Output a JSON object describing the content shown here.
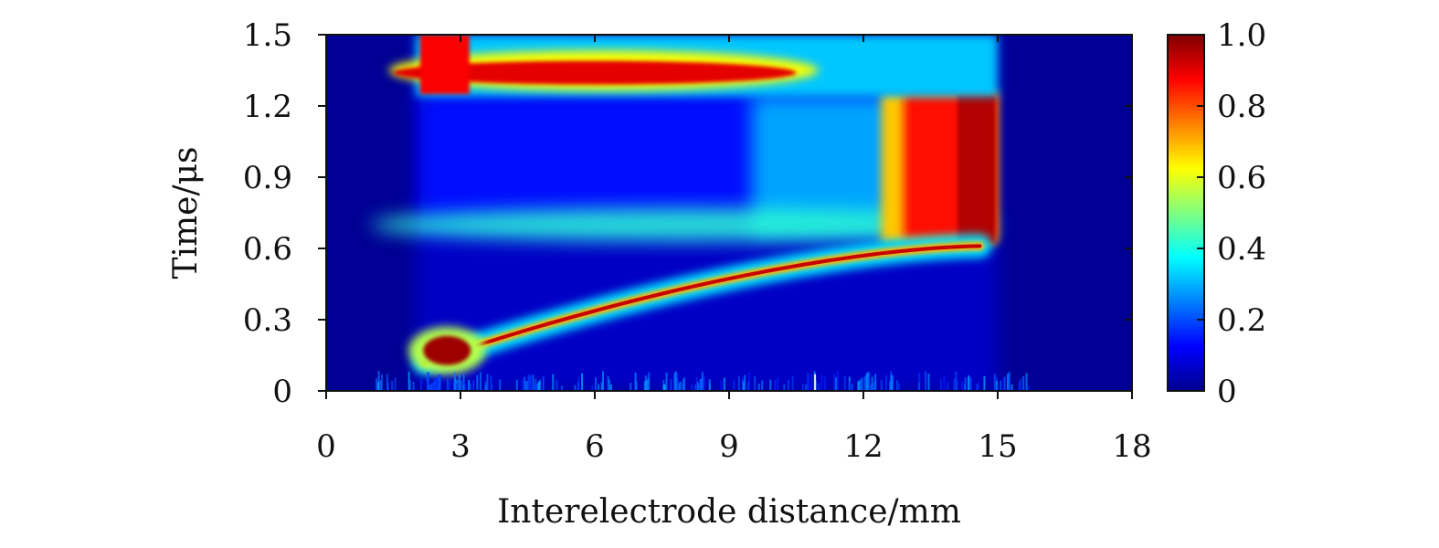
{
  "chart_data": {
    "type": "heatmap",
    "title": "",
    "xlabel": "Interelectrode distance/mm",
    "ylabel": "Time/μs",
    "xlim": [
      0,
      18
    ],
    "ylim": [
      0,
      1.5
    ],
    "x_ticks": [
      "0",
      "3",
      "6",
      "9",
      "12",
      "15",
      "18"
    ],
    "y_ticks": [
      "0",
      "0.3",
      "0.6",
      "0.9",
      "1.2",
      "1.5"
    ],
    "colorbar": {
      "range": [
        0,
        1.0
      ],
      "ticks": [
        "0",
        "0.2",
        "0.4",
        "0.6",
        "0.8",
        "1.0"
      ],
      "colormap": "jet"
    },
    "features": [
      {
        "name": "Primary ionization front",
        "x_start_mm": 2.2,
        "t_start_us": 0.12,
        "x_end_mm": 14.6,
        "t_end_us": 0.61,
        "peak": 0.95
      },
      {
        "name": "Near-cathode hot spot",
        "x_mm": 2.7,
        "t_us": 0.17,
        "peak": 1.0
      },
      {
        "name": "Anode-region glow",
        "x_range_mm": [
          12.7,
          15.0
        ],
        "t_range_us": [
          0.62,
          1.26
        ],
        "peak": 0.9
      },
      {
        "name": "Mid-gap band",
        "x_range_mm": [
          2.0,
          15.0
        ],
        "t_us": 0.7,
        "peak": 0.45
      },
      {
        "name": "Return front",
        "x_range_mm": [
          2.1,
          11.0
        ],
        "t_us": 1.33,
        "peak": 0.95
      }
    ],
    "grid": false
  }
}
